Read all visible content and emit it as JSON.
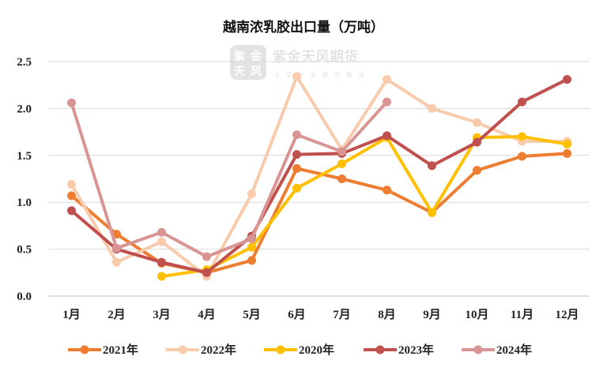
{
  "chart_data": {
    "type": "line",
    "title": "越南浓乳胶出口量（万吨）",
    "categories": [
      "1月",
      "2月",
      "3月",
      "4月",
      "5月",
      "6月",
      "7月",
      "8月",
      "9月",
      "10月",
      "11月",
      "12月"
    ],
    "ylim": [
      0,
      2.5
    ],
    "yticks": [
      "0.0",
      "0.5",
      "1.0",
      "1.5",
      "2.0",
      "2.5"
    ],
    "grid": "horizontal",
    "legend_position": "bottom",
    "series": [
      {
        "name": "2021年",
        "color": "#ed7d31",
        "values": [
          1.07,
          0.66,
          0.35,
          0.25,
          0.38,
          1.36,
          1.25,
          1.13,
          0.89,
          1.34,
          1.49,
          1.52
        ]
      },
      {
        "name": "2022年",
        "color": "#f8cbad",
        "values": [
          1.19,
          0.36,
          0.58,
          0.21,
          1.09,
          2.34,
          1.56,
          2.31,
          2.0,
          1.85,
          1.65,
          1.65
        ]
      },
      {
        "name": "2020年",
        "color": "#ffc000",
        "values": [
          null,
          null,
          0.21,
          0.28,
          0.52,
          1.15,
          1.41,
          1.69,
          0.89,
          1.69,
          1.7,
          1.62
        ]
      },
      {
        "name": "2023年",
        "color": "#c0504d",
        "values": [
          0.91,
          0.5,
          0.36,
          0.25,
          0.64,
          1.51,
          1.52,
          1.71,
          1.39,
          1.64,
          2.07,
          2.31
        ]
      },
      {
        "name": "2024年",
        "color": "#d99594",
        "values": [
          2.06,
          0.51,
          0.68,
          0.42,
          0.61,
          1.72,
          1.54,
          2.07,
          null,
          null,
          null,
          null
        ]
      }
    ]
  },
  "watermark": {
    "logo_glyphs": [
      "紫",
      "金",
      "天",
      "风"
    ],
    "name": "紫金天风期货",
    "subtitle": "立 足 产 业  研 究 驱 动"
  }
}
